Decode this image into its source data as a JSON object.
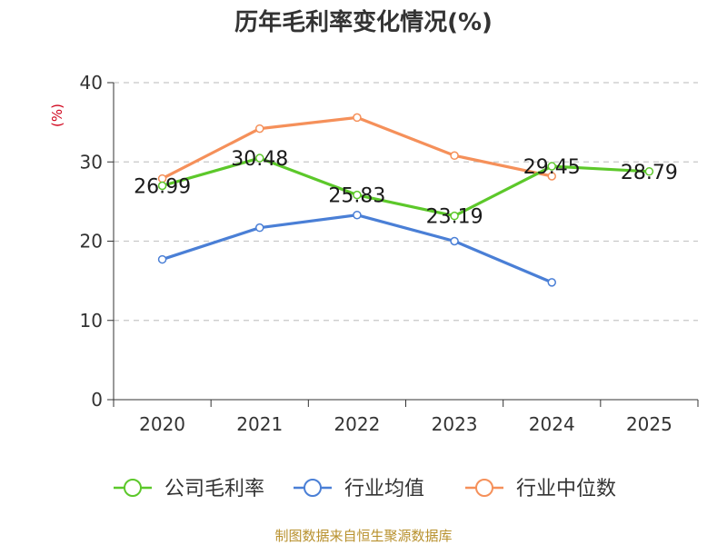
{
  "chart_data": {
    "type": "line",
    "title": "历年毛利率变化情况(%)",
    "ylabel": "(%)",
    "xlabel": "",
    "categories": [
      "2020",
      "2021",
      "2022",
      "2023",
      "2024",
      "2025"
    ],
    "ylim": [
      0,
      40
    ],
    "yticks": [
      0,
      10,
      20,
      30,
      40
    ],
    "grid": true,
    "legend_position": "bottom",
    "series": [
      {
        "name": "公司毛利率",
        "color": "#5cc82a",
        "values": [
          26.99,
          30.48,
          25.83,
          23.19,
          29.45,
          28.79
        ],
        "labels": [
          "26.99",
          "30.48",
          "25.83",
          "23.19",
          "29.45",
          "28.79"
        ]
      },
      {
        "name": "行业均值",
        "color": "#4a7fd6",
        "values": [
          17.7,
          21.7,
          23.3,
          20.0,
          14.8,
          null
        ]
      },
      {
        "name": "行业中位数",
        "color": "#f5905a",
        "values": [
          27.9,
          34.2,
          35.6,
          30.8,
          28.2,
          null
        ]
      }
    ]
  },
  "source": "制图数据来自恒生聚源数据库"
}
